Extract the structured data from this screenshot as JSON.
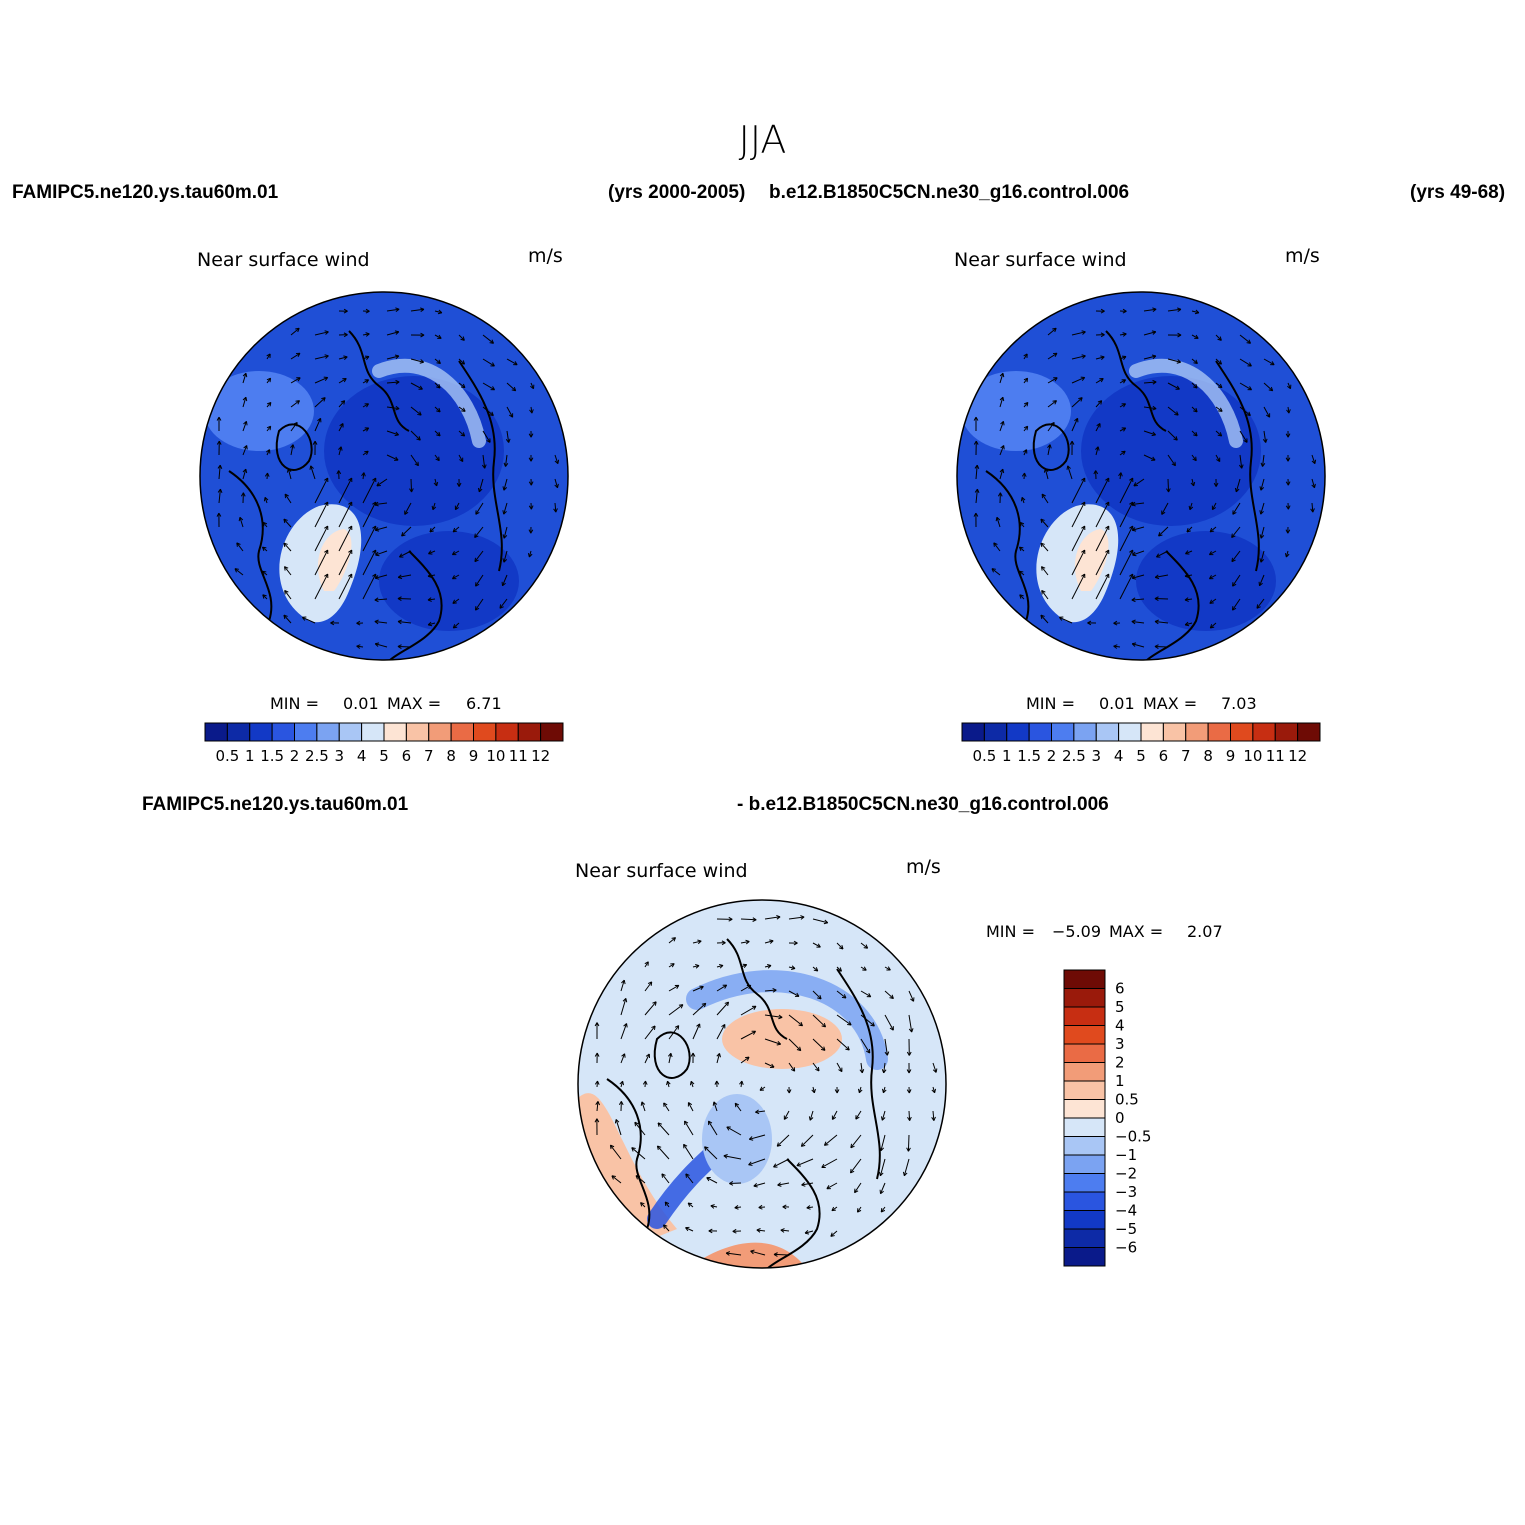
{
  "title": "JJA",
  "top_left_case": "FAMIPC5.ne120.ys.tau60m.01",
  "top_left_years": "(yrs 2000-2005)",
  "top_right_case": "b.e12.B1850C5CN.ne30_g16.control.006",
  "top_right_years": "(yrs 49-68)",
  "diff_case_a": "FAMIPC5.ne120.ys.tau60m.01",
  "diff_case_b": "- b.e12.B1850C5CN.ne30_g16.control.006",
  "panels": [
    {
      "label": "Near surface wind",
      "units": "m/s",
      "min_label": "MIN =",
      "min_value": "0.01",
      "max_label": "MAX =",
      "max_value": "6.71"
    },
    {
      "label": "Near surface wind",
      "units": "m/s",
      "min_label": "MIN =",
      "min_value": "0.01",
      "max_label": "MAX =",
      "max_value": "7.03"
    },
    {
      "label": "Near surface wind",
      "units": "m/s",
      "min_label": "MIN =",
      "min_value": "−5.09",
      "max_label": "MAX =",
      "max_value": "2.07"
    }
  ],
  "colorbar_horizontal": {
    "colors": [
      "#0a1a8a",
      "#0d2aa6",
      "#1239c6",
      "#2a55e0",
      "#4d7df0",
      "#7ba3f2",
      "#a9c6f5",
      "#d6e6f8",
      "#fde4d4",
      "#f9c3a6",
      "#f29c78",
      "#ea6b45",
      "#e04a1e",
      "#c72e12",
      "#9a1a0b",
      "#6e0b05"
    ],
    "labels": [
      "0.5",
      "1",
      "1.5",
      "2",
      "2.5",
      "3",
      "4",
      "5",
      "6",
      "7",
      "8",
      "9",
      "10",
      "11",
      "12"
    ]
  },
  "colorbar_vertical": {
    "colors": [
      "#0a1a8a",
      "#0d2aa6",
      "#1239c6",
      "#2a55e0",
      "#4d7df0",
      "#7ba3f2",
      "#a9c6f5",
      "#d6e6f8",
      "#fde4d4",
      "#f9c3a6",
      "#f29c78",
      "#ea6b45",
      "#e04a1e",
      "#c72e12",
      "#9a1a0b",
      "#6e0b05"
    ],
    "labels": [
      "−6",
      "−5",
      "−4",
      "−3",
      "−2",
      "−1",
      "−0.5",
      "0",
      "0.5",
      "1",
      "2",
      "3",
      "4",
      "5",
      "6"
    ]
  }
}
